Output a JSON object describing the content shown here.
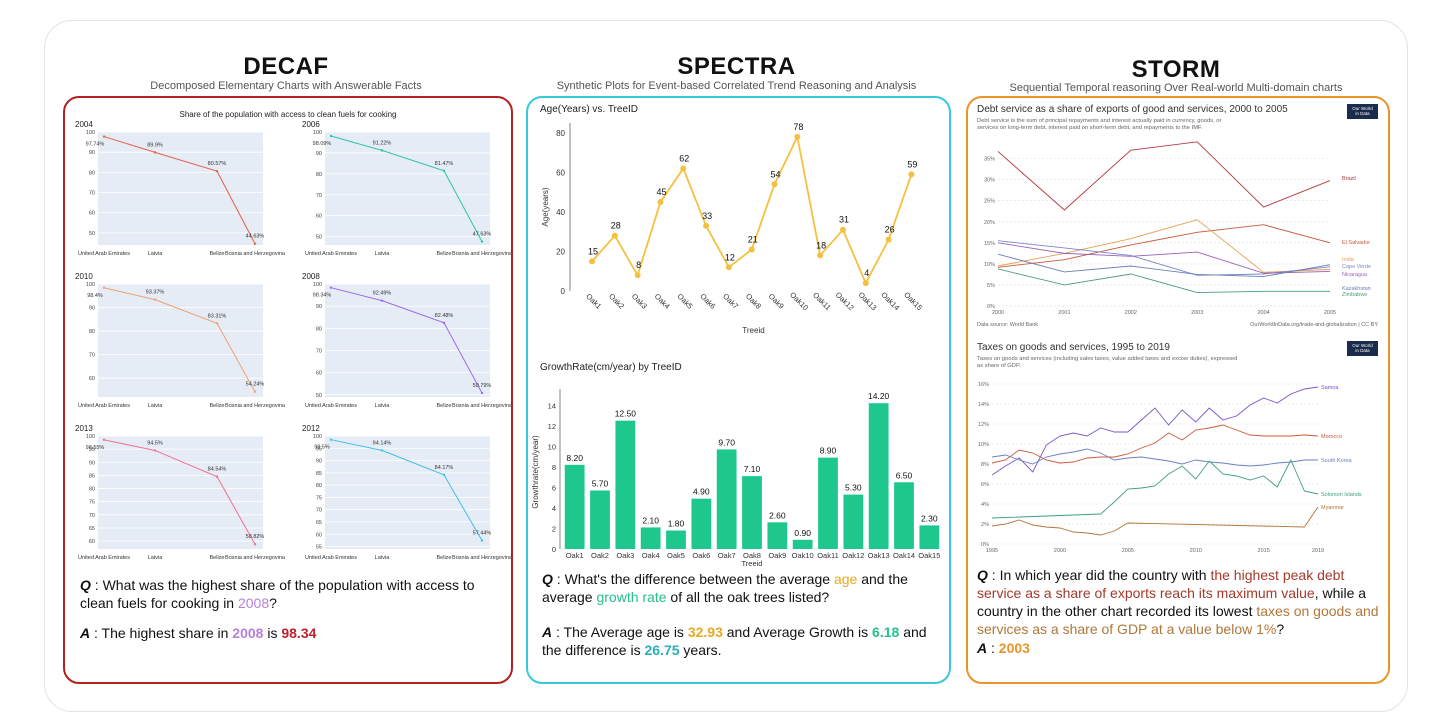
{
  "columns": [
    {
      "title": "DECAF",
      "subtitle": "Decomposed Elementary Charts with Answerable Facts"
    },
    {
      "title": "SPECTRA",
      "subtitle": "Synthetic Plots for Event-based Correlated Trend Reasoning and Analysis"
    },
    {
      "title": "STORM",
      "subtitle": "Sequential Temporal reasoning Over Real-world Multi-domain charts"
    }
  ],
  "decaf": {
    "qa": {
      "q_label": "Q",
      "q_text": "What was the highest share of the population with access to clean fuels for cooking in",
      "q_year": "2008",
      "q_end": "?",
      "a_label": "A",
      "a_text1": "The highest share in",
      "a_year": "2008",
      "a_text2": "is",
      "a_value": "98.34"
    },
    "colors": {
      "year": "#b77fd9",
      "value": "#c0202a"
    }
  },
  "spectra": {
    "qa": {
      "q_label": "Q",
      "q_1": "What's the difference between the average",
      "q_age": "age",
      "q_2": "and the average",
      "q_gr": "growth rate",
      "q_3": "of all the oak trees listed?",
      "a_label": "A",
      "a_1": "The Average age is",
      "a_age": "32.93",
      "a_2": "and Average Growth is",
      "a_gr": "6.18",
      "a_3": "and the difference is",
      "a_diff": "26.75",
      "a_4": "years."
    },
    "colors": {
      "age": "#e8a820",
      "growth": "#27c08a",
      "diff": "#2aaebc"
    }
  },
  "storm": {
    "qa": {
      "q_label": "Q",
      "q_1": "In which year did the country with",
      "q_hl1": "the highest peak debt service as a share of exports reach its maximum value",
      "q_2": ", while a country in the other chart recorded its lowest",
      "q_hl2": "taxes on goods and services as a share of GDP at a value below 1%",
      "q_3": "?",
      "a_label": "A",
      "a_sep": ":",
      "a_value": "2003"
    },
    "colors": {
      "hl1": "#a33a2a",
      "hl2": "#b0773a",
      "answer": "#e89428"
    }
  },
  "chart_data": [
    {
      "id": "decaf-2004",
      "type": "line",
      "title": "Share of the population with access to clean fuels for cooking",
      "label": "2004",
      "categories": [
        "United Arab Emirates",
        "Latvia",
        "Belize",
        "Bosnia and Herzegovina"
      ],
      "values": [
        97.74,
        89.9,
        80.57,
        44.63
      ],
      "value_labels": [
        "97.74%",
        "89.9%",
        "80.57%",
        "44.63%"
      ],
      "yticks": [
        50,
        60,
        70,
        80,
        90,
        100
      ],
      "ylim": [
        44,
        100
      ],
      "color": "#e8604c"
    },
    {
      "id": "decaf-2006",
      "type": "line",
      "label": "2006",
      "categories": [
        "United Arab Emirates",
        "Latvia",
        "Belize",
        "Bosnia and Herzegovina"
      ],
      "values": [
        98.09,
        91.22,
        81.47,
        47.63
      ],
      "value_labels": [
        "98.09%",
        "91.22%",
        "81.47%",
        "47.63%"
      ],
      "yticks": [
        50,
        60,
        70,
        80,
        90,
        100
      ],
      "ylim": [
        46,
        100
      ],
      "color": "#2ec4a8"
    },
    {
      "id": "decaf-2010",
      "type": "line",
      "label": "2010",
      "categories": [
        "United Arab Emirates",
        "Latvia",
        "Belize",
        "Bosnia and Herzegovina"
      ],
      "values": [
        98.4,
        93.37,
        83.31,
        54.24
      ],
      "value_labels": [
        "98.4%",
        "93.37%",
        "83.31%",
        "54.24%"
      ],
      "yticks": [
        60,
        70,
        80,
        90,
        100
      ],
      "ylim": [
        52,
        100
      ],
      "color": "#f0a070"
    },
    {
      "id": "decaf-2008",
      "type": "line",
      "label": "2008",
      "categories": [
        "United Arab Emirates",
        "Latvia",
        "Belize",
        "Bosnia and Herzegovina"
      ],
      "values": [
        98.34,
        92.49,
        82.48,
        50.79
      ],
      "value_labels": [
        "98.34%",
        "92.49%",
        "82.48%",
        "50.79%"
      ],
      "yticks": [
        50,
        60,
        70,
        80,
        90,
        100
      ],
      "ylim": [
        49,
        100
      ],
      "color": "#9a6aee"
    },
    {
      "id": "decaf-2013",
      "type": "line",
      "label": "2013",
      "categories": [
        "United Arab Emirates",
        "Latvia",
        "Belize",
        "Bosnia and Herzegovina"
      ],
      "values": [
        98.55,
        94.5,
        84.54,
        58.82
      ],
      "value_labels": [
        "98.55%",
        "94.5%",
        "84.54%",
        "58.82%"
      ],
      "yticks": [
        60,
        65,
        70,
        75,
        80,
        85,
        90,
        95,
        100
      ],
      "ylim": [
        57,
        100
      ],
      "color": "#f07090"
    },
    {
      "id": "decaf-2012",
      "type": "line",
      "label": "2012",
      "categories": [
        "United Arab Emirates",
        "Latvia",
        "Belize",
        "Bosnia and Herzegovina"
      ],
      "values": [
        98.5,
        94.14,
        84.17,
        57.44
      ],
      "value_labels": [
        "98.5%",
        "94.14%",
        "84.17%",
        "57.44%"
      ],
      "yticks": [
        55,
        60,
        65,
        70,
        75,
        80,
        85,
        90,
        95,
        100
      ],
      "ylim": [
        54,
        100
      ],
      "color": "#3ec0e8"
    },
    {
      "id": "spectra-age",
      "type": "line",
      "title": "Age(Years) vs. TreeID",
      "xlabel": "Treeid",
      "ylabel": "Age(years)",
      "categories": [
        "Oak1",
        "Oak2",
        "Oak3",
        "Oak4",
        "Oak5",
        "Oak6",
        "Oak7",
        "Oak8",
        "Oak9",
        "Oak10",
        "Oak11",
        "Oak12",
        "Oak13",
        "Oak14",
        "Oak15"
      ],
      "values": [
        15,
        28,
        8,
        45,
        62,
        33,
        12,
        21,
        54,
        78,
        18,
        31,
        4,
        26,
        59
      ],
      "yticks": [
        0,
        20,
        40,
        60,
        80
      ],
      "ylim": [
        0,
        85
      ],
      "color": "#f5c040"
    },
    {
      "id": "spectra-growth",
      "type": "bar",
      "title": "GrowthRate(cm/year) by TreeID",
      "xlabel": "Treeid",
      "ylabel": "Growthrate(cm/year)",
      "categories": [
        "Oak1",
        "Oak2",
        "Oak3",
        "Oak4",
        "Oak5",
        "Oak6",
        "Oak7",
        "Oak8",
        "Oak9",
        "Oak10",
        "Oak11",
        "Oak12",
        "Oak13",
        "Oak14",
        "Oak15"
      ],
      "values": [
        8.2,
        5.7,
        12.5,
        2.1,
        1.8,
        4.9,
        9.7,
        7.1,
        2.6,
        0.9,
        8.9,
        5.3,
        14.2,
        6.5,
        2.3
      ],
      "value_labels": [
        "8.20",
        "5.70",
        "12.50",
        "2.10",
        "1.80",
        "4.90",
        "9.70",
        "7.10",
        "2.60",
        "0.90",
        "8.90",
        "5.30",
        "14.20",
        "6.50",
        "2.30"
      ],
      "yticks": [
        0,
        2,
        4,
        6,
        8,
        10,
        12,
        14
      ],
      "ylim": [
        0,
        15
      ],
      "color": "#1ec88c"
    },
    {
      "id": "storm-debt",
      "type": "line",
      "title": "Debt service as a share of exports of good and services, 2000 to 2005",
      "subtitle": "Debt service is the sum of principal repayments and interest actually paid in currency, goods, or services on long-term debt, interest paid on short-term debt, and repayments to the IMF.",
      "logo": "Our World in Data",
      "source": "Data source: World Bank",
      "credit": "OurWorldInData.org/trade-and-globalization | CC BY",
      "x": [
        2000,
        2001,
        2002,
        2003,
        2004,
        2005
      ],
      "xticks": [
        2000,
        2001,
        2002,
        2003,
        2004,
        2005
      ],
      "yticks": [
        0,
        5,
        10,
        15,
        20,
        25,
        30,
        35
      ],
      "ytick_labels": [
        "0%",
        "5%",
        "10%",
        "15%",
        "20%",
        "25%",
        "30%",
        "35%"
      ],
      "ylim": [
        0,
        38
      ],
      "series": [
        {
          "name": "Brazil",
          "values": [
            36.7,
            22.8,
            37.0,
            39.0,
            23.5,
            29.8
          ],
          "color": "#b3383e"
        },
        {
          "name": "El Salvador",
          "values": [
            9.2,
            11.0,
            14.5,
            17.5,
            19.3,
            15.0
          ],
          "color": "#c9573a"
        },
        {
          "name": "India",
          "values": [
            9.5,
            12.5,
            16.0,
            20.5,
            8.0,
            8.7
          ],
          "color": "#e4a050"
        },
        {
          "name": "Cape Verde",
          "values": [
            15.5,
            13.8,
            12.0,
            7.3,
            7.6,
            9.3
          ],
          "color": "#7b87c9"
        },
        {
          "name": "Nicaragua",
          "values": [
            15.0,
            12.5,
            11.8,
            12.8,
            7.8,
            8.2
          ],
          "color": "#9b62b8"
        },
        {
          "name": "Kazakhstan",
          "values": [
            12.3,
            8.1,
            9.5,
            7.5,
            7.0,
            9.8
          ],
          "color": "#6a7fb8"
        },
        {
          "name": "Zimbabwe",
          "values": [
            8.8,
            5.0,
            7.6,
            3.2,
            3.5,
            3.5
          ],
          "color": "#4c9c7e"
        }
      ]
    },
    {
      "id": "storm-taxes",
      "type": "line",
      "title": "Taxes on goods and services, 1995 to 2019",
      "subtitle": "Taxes on goods and services (including sales taxes, value added taxes and excise duties), expressed as share of GDP.",
      "logo": "Our World in Data",
      "xticks": [
        1995,
        2000,
        2005,
        2010,
        2015,
        2019
      ],
      "yticks": [
        0,
        2,
        4,
        6,
        8,
        10,
        12,
        14,
        16
      ],
      "ytick_labels": [
        "0%",
        "2%",
        "4%",
        "6%",
        "8%",
        "10%",
        "12%",
        "14%",
        "16%"
      ],
      "ylim": [
        0,
        16.5
      ],
      "series": [
        {
          "name": "Samoa",
          "x": [
            1995,
            1996,
            1997,
            1998,
            1999,
            2000,
            2001,
            2002,
            2003,
            2004,
            2005,
            2006,
            2007,
            2008,
            2009,
            2010,
            2011,
            2012,
            2013,
            2014,
            2015,
            2016,
            2017,
            2018,
            2019
          ],
          "values": [
            6.9,
            7.8,
            8.6,
            7.2,
            9.9,
            10.8,
            11.1,
            10.8,
            11.6,
            11.2,
            11.2,
            12.4,
            13.6,
            11.9,
            13.4,
            12.2,
            13.6,
            12.4,
            12.8,
            13.9,
            14.6,
            14.1,
            15.0,
            15.5,
            15.7
          ],
          "color": "#7b55c8"
        },
        {
          "name": "Morocco",
          "x": [
            1995,
            1996,
            1997,
            1998,
            1999,
            2000,
            2001,
            2002,
            2003,
            2004,
            2005,
            2006,
            2007,
            2008,
            2009,
            2010,
            2011,
            2012,
            2013,
            2014,
            2015,
            2016,
            2017,
            2018,
            2019
          ],
          "values": [
            8.1,
            8.4,
            9.4,
            9.1,
            8.4,
            8.1,
            8.2,
            8.6,
            8.7,
            8.7,
            9.0,
            9.6,
            10.1,
            11.1,
            10.4,
            11.4,
            11.6,
            11.9,
            11.4,
            10.9,
            10.8,
            10.8,
            10.8,
            10.9,
            10.8
          ],
          "color": "#c95a3a"
        },
        {
          "name": "South Korea",
          "x": [
            1995,
            1996,
            1997,
            1998,
            1999,
            2000,
            2001,
            2002,
            2003,
            2004,
            2005,
            2006,
            2007,
            2008,
            2009,
            2010,
            2011,
            2012,
            2013,
            2014,
            2015,
            2016,
            2017,
            2018,
            2019
          ],
          "values": [
            8.7,
            8.9,
            8.4,
            8.0,
            8.7,
            9.0,
            9.2,
            9.5,
            9.1,
            8.4,
            8.6,
            8.7,
            8.5,
            8.3,
            8.0,
            8.4,
            8.2,
            8.1,
            7.9,
            7.8,
            7.9,
            8.1,
            8.2,
            8.4,
            8.4
          ],
          "color": "#6a80c0"
        },
        {
          "name": "Solomon Islands",
          "x": [
            1995,
            2003,
            2004,
            2005,
            2006,
            2007,
            2008,
            2009,
            2010,
            2011,
            2012,
            2013,
            2014,
            2015,
            2016,
            2017,
            2018,
            2019
          ],
          "values": [
            2.6,
            3.0,
            4.2,
            5.5,
            5.6,
            5.8,
            7.0,
            7.8,
            6.5,
            8.3,
            7.0,
            6.8,
            6.4,
            6.8,
            5.7,
            8.4,
            5.3,
            5.0
          ],
          "color": "#3e9e7a"
        },
        {
          "name": "Myanmar",
          "x": [
            1995,
            1996,
            1997,
            1998,
            1999,
            2000,
            2001,
            2002,
            2003,
            2004,
            2005,
            2018,
            2019
          ],
          "values": [
            1.8,
            2.0,
            2.4,
            1.9,
            1.7,
            1.6,
            1.2,
            1.1,
            0.9,
            1.3,
            2.1,
            1.7,
            3.7
          ],
          "color": "#b0773a"
        }
      ]
    }
  ]
}
